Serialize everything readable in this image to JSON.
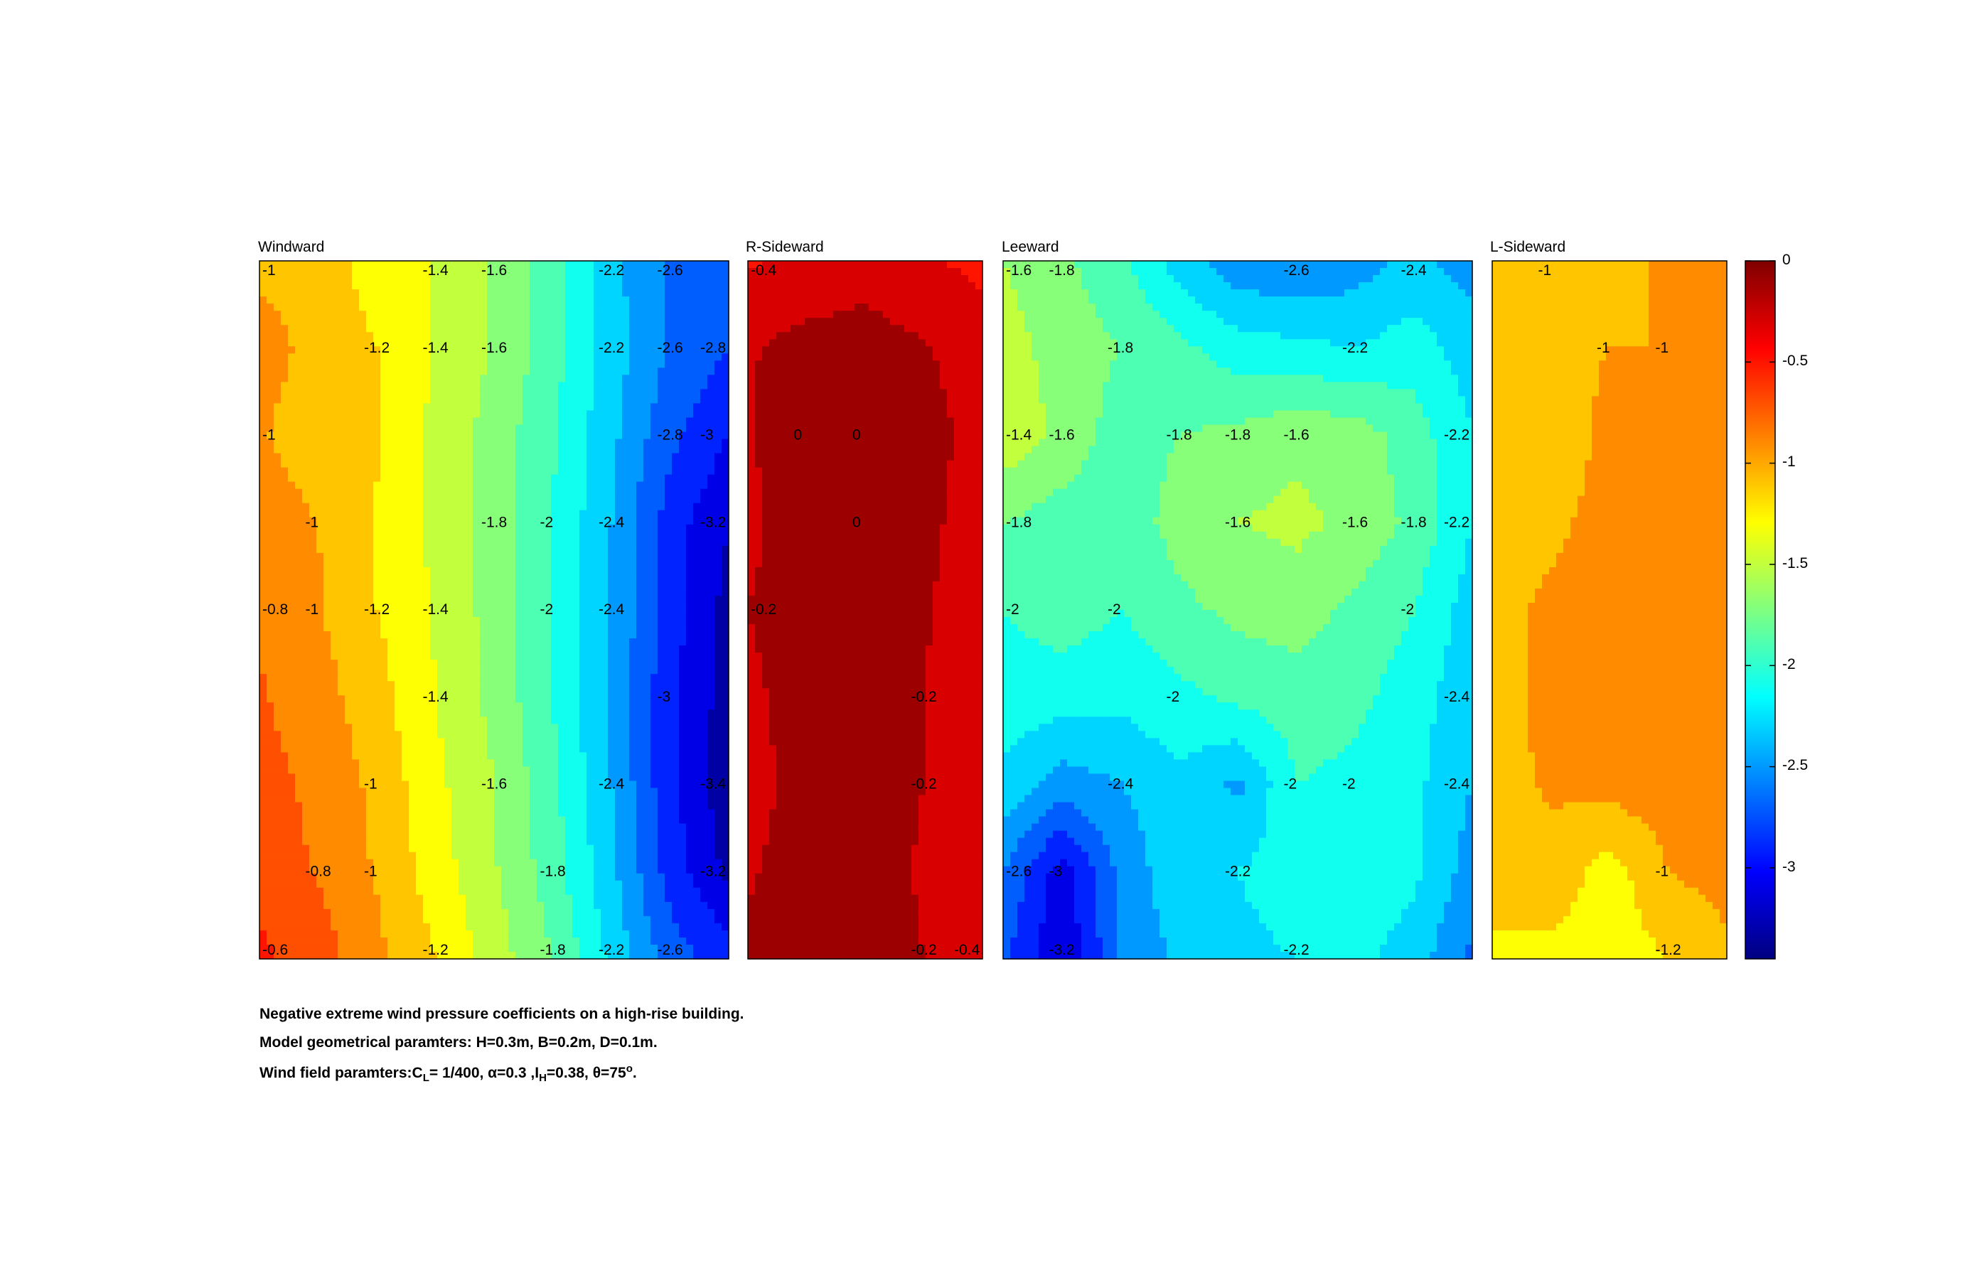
{
  "chart_data": {
    "type": "heatmap",
    "colormap": "jet",
    "clim": [
      -3.45,
      0
    ],
    "panels": [
      {
        "title": "Windward",
        "nx": 9,
        "ny": 9,
        "grid": [
          [
            -1.05,
            -1.12,
            -1.28,
            -1.42,
            -1.62,
            -1.92,
            -2.35,
            -2.62,
            -2.72
          ],
          [
            -0.9,
            -1.08,
            -1.2,
            -1.42,
            -1.62,
            -1.92,
            -2.3,
            -2.62,
            -2.8
          ],
          [
            -0.98,
            -1.12,
            -1.18,
            -1.45,
            -1.68,
            -1.98,
            -2.35,
            -2.75,
            -3.0
          ],
          [
            -0.88,
            -1.0,
            -1.22,
            -1.45,
            -1.7,
            -2.0,
            -2.4,
            -2.9,
            -3.2
          ],
          [
            -0.82,
            -0.98,
            -1.2,
            -1.42,
            -1.68,
            -2.0,
            -2.4,
            -2.9,
            -3.28
          ],
          [
            -0.78,
            -0.92,
            -1.12,
            -1.4,
            -1.66,
            -2.0,
            -2.45,
            -2.95,
            -3.3
          ],
          [
            -0.72,
            -0.85,
            -1.05,
            -1.35,
            -1.6,
            -1.95,
            -2.4,
            -2.95,
            -3.35
          ],
          [
            -0.68,
            -0.82,
            -1.02,
            -1.3,
            -1.58,
            -1.9,
            -2.35,
            -2.88,
            -3.25
          ],
          [
            -0.55,
            -0.7,
            -0.95,
            -1.2,
            -1.5,
            -1.8,
            -2.25,
            -2.7,
            -2.9
          ]
        ],
        "contour_labels": [
          "-1",
          "-1.4",
          "-2.8",
          "-1",
          "-1.2",
          "-1.4",
          "-1.6",
          "-1.8",
          "-2",
          "-2.2",
          "-2.4",
          "-2.6",
          "-1",
          "-1",
          "-1.2",
          "-1.4",
          "-1.6",
          "-1.8",
          "-2",
          "-2.2",
          "-2.4",
          "-2.6",
          "-3",
          "-3.2",
          "-1",
          "-0.8",
          "-3.4",
          "-3.2",
          "-3",
          "-0.6",
          "-0.8",
          "-1",
          "-1.2",
          "-1.4",
          "-1.6",
          "-1.8",
          "-2.2",
          "-2.4",
          "-2.6",
          "-2.8"
        ]
      },
      {
        "title": "R-Sideward",
        "nx": 5,
        "ny": 9,
        "grid": [
          [
            -0.42,
            -0.38,
            -0.3,
            -0.38,
            -0.45
          ],
          [
            -0.22,
            -0.12,
            -0.1,
            -0.18,
            -0.3
          ],
          [
            -0.22,
            -0.05,
            0.0,
            -0.12,
            -0.28
          ],
          [
            -0.25,
            -0.08,
            -0.06,
            -0.15,
            -0.3
          ],
          [
            -0.2,
            -0.1,
            -0.12,
            -0.18,
            -0.32
          ],
          [
            -0.24,
            -0.12,
            -0.13,
            -0.2,
            -0.32
          ],
          [
            -0.26,
            -0.14,
            -0.12,
            -0.2,
            -0.34
          ],
          [
            -0.22,
            -0.12,
            -0.12,
            -0.22,
            -0.38
          ],
          [
            -0.16,
            -0.06,
            -0.1,
            -0.2,
            -0.4
          ]
        ],
        "contour_labels": [
          "-0.4",
          "-0.2",
          "0",
          "0",
          "-0.2",
          "-0.2",
          "-0.4",
          "-0.2",
          "0"
        ]
      },
      {
        "title": "Leeward",
        "nx": 9,
        "ny": 9,
        "grid": [
          [
            -1.6,
            -1.75,
            -1.95,
            -2.3,
            -2.55,
            -2.6,
            -2.5,
            -2.35,
            -2.5
          ],
          [
            -1.5,
            -1.7,
            -1.8,
            -1.95,
            -2.1,
            -2.15,
            -2.2,
            -2.1,
            -2.3
          ],
          [
            -1.45,
            -1.65,
            -1.9,
            -1.8,
            -1.75,
            -1.65,
            -1.7,
            -1.9,
            -2.2
          ],
          [
            -1.8,
            -1.9,
            -1.92,
            -1.72,
            -1.6,
            -1.55,
            -1.65,
            -1.85,
            -2.2
          ],
          [
            -2.0,
            -1.9,
            -2.0,
            -1.85,
            -1.75,
            -1.7,
            -1.85,
            -2.0,
            -2.3
          ],
          [
            -2.1,
            -2.1,
            -2.15,
            -2.05,
            -1.95,
            -1.9,
            -1.95,
            -2.1,
            -2.35
          ],
          [
            -2.25,
            -2.5,
            -2.4,
            -2.25,
            -2.45,
            -2.0,
            -2.05,
            -2.15,
            -2.4
          ],
          [
            -2.6,
            -3.1,
            -2.55,
            -2.25,
            -2.2,
            -2.1,
            -2.05,
            -2.15,
            -2.5
          ],
          [
            -2.75,
            -3.2,
            -2.6,
            -2.35,
            -2.25,
            -2.2,
            -2.15,
            -2.3,
            -2.65
          ]
        ],
        "contour_labels": [
          "-1.8",
          "-2",
          "-2.2",
          "-2.4",
          "-1.4",
          "-1.6",
          "-1.8",
          "-1.6",
          "-1.8",
          "-1.6",
          "-2",
          "-1.8",
          "-1.6",
          "-2",
          "-1.6",
          "-1.8",
          "-2",
          "-2.2",
          "-2.2",
          "-2.4",
          "-1.8",
          "-2.2",
          "-2.4",
          "-2.6",
          "-3",
          "-3.2",
          "-2.4",
          "-2",
          "-2.2",
          "-2",
          "-2.6"
        ]
      },
      {
        "title": "L-Sideward",
        "nx": 5,
        "ny": 9,
        "grid": [
          [
            -1.05,
            -1.02,
            -1.05,
            -0.98,
            -0.92
          ],
          [
            -1.1,
            -1.05,
            -1.0,
            -1.0,
            -0.95
          ],
          [
            -1.1,
            -1.12,
            -0.95,
            -0.92,
            -0.9
          ],
          [
            -1.1,
            -1.05,
            -0.92,
            -0.9,
            -0.88
          ],
          [
            -1.08,
            -0.95,
            -0.9,
            -0.88,
            -0.88
          ],
          [
            -1.06,
            -0.95,
            -0.9,
            -0.88,
            -0.88
          ],
          [
            -1.06,
            -0.98,
            -0.92,
            -0.88,
            -0.88
          ],
          [
            -1.1,
            -1.05,
            -1.3,
            -1.0,
            -0.92
          ],
          [
            -1.25,
            -1.28,
            -1.32,
            -1.2,
            -1.05
          ]
        ],
        "contour_labels": [
          "-1",
          "-1",
          "-1",
          "-1",
          "-1.2"
        ]
      }
    ],
    "colorbar": {
      "ticks": [
        "0",
        "-0.5",
        "-1",
        "-1.5",
        "-2",
        "-2.5",
        "-3"
      ]
    }
  },
  "captions": {
    "line1": "Negative extreme wind pressure coefficients on a high-rise building.",
    "line2": "Model geometrical paramters: H=0.3m, B=0.2m, D=0.1m.",
    "line3_prefix": "Wind field paramters:C",
    "line3_sub1": "L",
    "line3_mid1": "= 1/400, α=0.3 ,I",
    "line3_sub2": "H",
    "line3_mid2": "=0.38, θ=75",
    "line3_sup": "o",
    "line3_end": "."
  },
  "colors": {
    "frame": "#000000",
    "contour_line": "#3a3a3a",
    "background": "#ffffff"
  }
}
